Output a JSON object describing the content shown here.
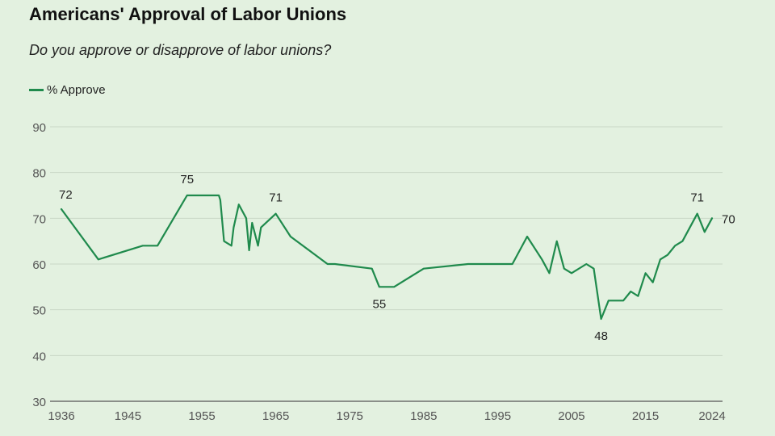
{
  "chart_data": {
    "type": "line",
    "title": "Americans' Approval of Labor Unions",
    "subtitle": "Do you approve or disapprove of labor unions?",
    "xlabel": "",
    "ylabel": "",
    "ylim": [
      30,
      90
    ],
    "yticks": [
      "30",
      "40",
      "50",
      "60",
      "70",
      "80",
      "90"
    ],
    "xlim": [
      1936,
      2024
    ],
    "xticks": [
      "1936",
      "1945",
      "1955",
      "1965",
      "1975",
      "1985",
      "1995",
      "2005",
      "2015",
      "2024"
    ],
    "grid": true,
    "legend": "top-left",
    "series": [
      {
        "name": "% Approve",
        "color": "#1f8a4c",
        "points": [
          [
            1936,
            72
          ],
          [
            1941,
            61
          ],
          [
            1947,
            64
          ],
          [
            1949,
            64
          ],
          [
            1953,
            75
          ],
          [
            1957.3,
            75
          ],
          [
            1957.5,
            74
          ],
          [
            1958,
            65
          ],
          [
            1959,
            64
          ],
          [
            1959.3,
            68
          ],
          [
            1960,
            73
          ],
          [
            1961,
            70
          ],
          [
            1961.4,
            63
          ],
          [
            1961.8,
            69
          ],
          [
            1962.6,
            64
          ],
          [
            1963,
            68
          ],
          [
            1965,
            71
          ],
          [
            1967,
            66
          ],
          [
            1972,
            60
          ],
          [
            1973,
            60
          ],
          [
            1978,
            59
          ],
          [
            1979,
            55
          ],
          [
            1981,
            55
          ],
          [
            1985,
            59
          ],
          [
            1991,
            60
          ],
          [
            1997,
            60
          ],
          [
            1999,
            66
          ],
          [
            2001,
            61
          ],
          [
            2002,
            58
          ],
          [
            2003,
            65
          ],
          [
            2004,
            59
          ],
          [
            2005,
            58
          ],
          [
            2007,
            60
          ],
          [
            2008,
            59
          ],
          [
            2009,
            48
          ],
          [
            2010,
            52
          ],
          [
            2011,
            52
          ],
          [
            2012,
            52
          ],
          [
            2013,
            54
          ],
          [
            2014,
            53
          ],
          [
            2015,
            58
          ],
          [
            2016,
            56
          ],
          [
            2017,
            61
          ],
          [
            2018,
            62
          ],
          [
            2019,
            64
          ],
          [
            2020,
            65
          ],
          [
            2022,
            71
          ],
          [
            2023,
            67
          ],
          [
            2024,
            70
          ]
        ]
      }
    ],
    "annotations": [
      {
        "text": "72",
        "x": 1936,
        "y": 72,
        "pos": "above-right"
      },
      {
        "text": "75",
        "x": 1953,
        "y": 75,
        "pos": "above"
      },
      {
        "text": "71",
        "x": 1965,
        "y": 71,
        "pos": "above"
      },
      {
        "text": "55",
        "x": 1979,
        "y": 55,
        "pos": "below"
      },
      {
        "text": "48",
        "x": 2009,
        "y": 48,
        "pos": "below"
      },
      {
        "text": "71",
        "x": 2022,
        "y": 71,
        "pos": "above"
      },
      {
        "text": "70",
        "x": 2024,
        "y": 70,
        "pos": "right"
      }
    ]
  }
}
